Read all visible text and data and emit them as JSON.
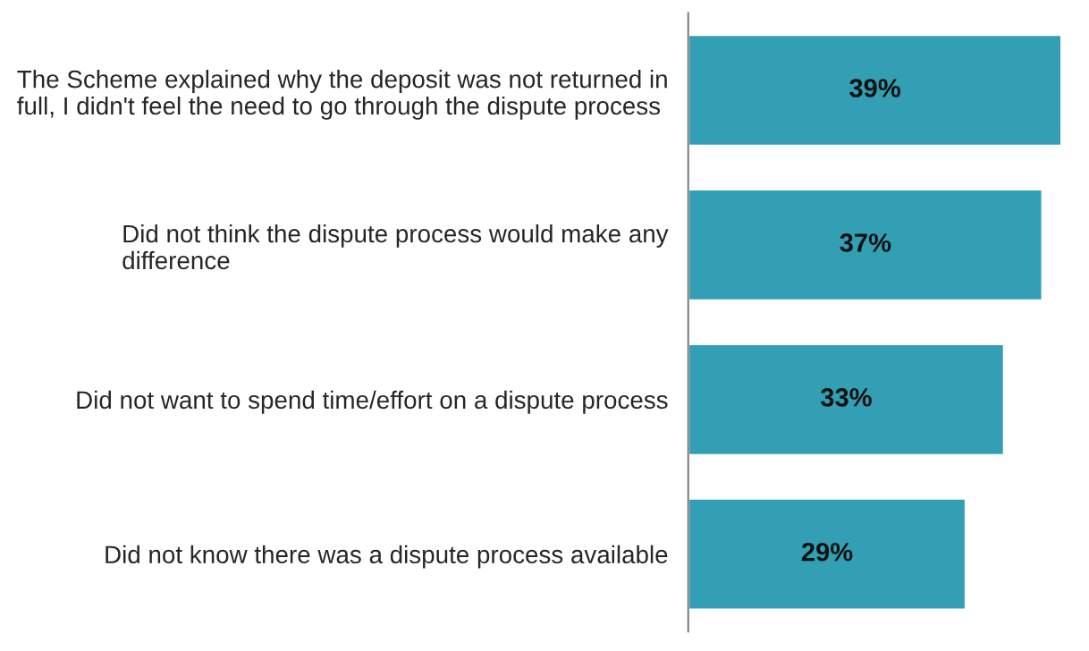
{
  "chart_data": {
    "type": "bar",
    "orientation": "horizontal",
    "categories": [
      "The Scheme explained why the deposit was not returned in full, I didn't feel the need to go through the dispute process",
      "Did not think the dispute process would make any difference",
      "Did not want to spend time/effort on a dispute process",
      "Did not know there was a dispute process available"
    ],
    "values": [
      39,
      37,
      33,
      29
    ],
    "value_labels": [
      "39%",
      "37%",
      "33%",
      "29%"
    ],
    "color": "#339fb5",
    "grid": false,
    "legend": false
  }
}
